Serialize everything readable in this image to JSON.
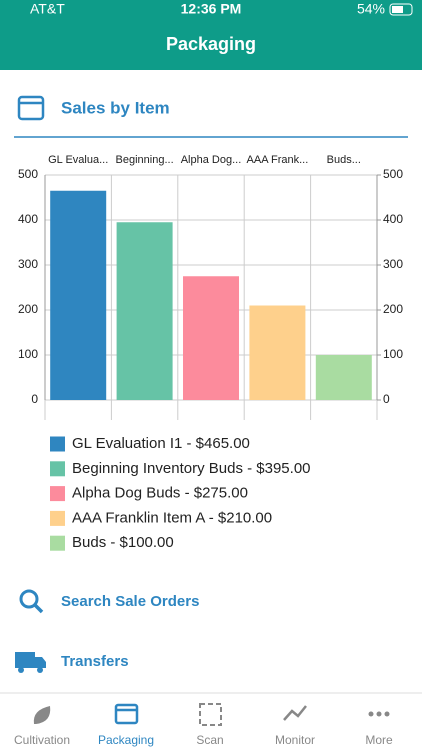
{
  "status_bar": {
    "carrier": "AT&T",
    "time": "12:36 PM",
    "battery": "54%"
  },
  "header": {
    "title": "Packaging"
  },
  "section": {
    "title": "Sales by Item"
  },
  "chart_data": {
    "type": "bar",
    "categories": [
      "GL Evalua...",
      "Beginning...",
      "Alpha Dog...",
      "AAA Frank...",
      "Buds..."
    ],
    "values": [
      465,
      395,
      275,
      210,
      100
    ],
    "colors": [
      "#2f86c0",
      "#66c3a6",
      "#fc8b9c",
      "#fed08c",
      "#a9dca1"
    ],
    "legend": [
      "GL Evaluation I1 - $465.00",
      "Beginning Inventory Buds - $395.00",
      "Alpha Dog Buds - $275.00",
      "AAA Franklin Item A - $210.00",
      "Buds - $100.00"
    ],
    "ylim": [
      0,
      500
    ],
    "yticks": [
      0,
      100,
      200,
      300,
      400,
      500
    ],
    "y2lim": [
      0,
      500
    ],
    "y2ticks": [
      0,
      100,
      200,
      300,
      400,
      500
    ],
    "grid": true
  },
  "menu": [
    "Search Sale Orders",
    "Transfers"
  ],
  "tabs": [
    "Cultivation",
    "Packaging",
    "Scan",
    "Monitor",
    "More"
  ]
}
